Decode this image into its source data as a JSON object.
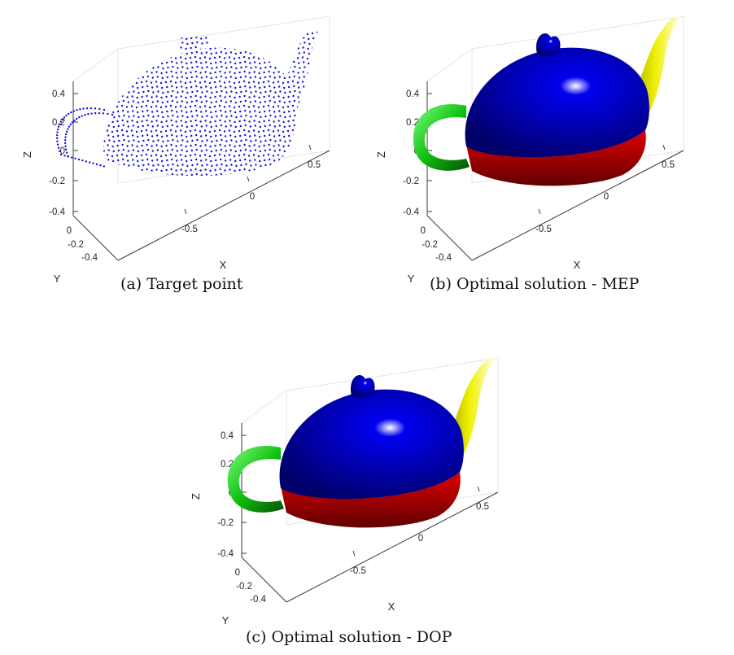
{
  "figure": {
    "panels": [
      {
        "id": "a",
        "caption": "(a) Target point",
        "render": "points",
        "point_color": "#1010e0",
        "axes": {
          "x_label": "X",
          "y_label": "Y",
          "z_label": "Z",
          "x_ticks": [
            "-0.5",
            "0",
            "0.5"
          ],
          "y_ticks": [
            "0",
            "-0.2",
            "-0.4"
          ],
          "z_ticks": [
            "0.4",
            "0.2",
            "0",
            "-0.2",
            "-0.4"
          ]
        }
      },
      {
        "id": "b",
        "caption": "(b) Optimal solution - MEP",
        "render": "surface",
        "part_colors": {
          "lid_body": "#0000ee",
          "base": "#e00000",
          "handle": "#10c010",
          "spout": "#f0f000"
        },
        "axes": {
          "x_label": "X",
          "y_label": "Y",
          "z_label": "Z",
          "x_ticks": [
            "-0.5",
            "0",
            "0.5"
          ],
          "y_ticks": [
            "0",
            "-0.2",
            "-0.4"
          ],
          "z_ticks": [
            "0.4",
            "0.2",
            "0",
            "-0.2",
            "-0.4"
          ]
        }
      },
      {
        "id": "c",
        "caption": "(c) Optimal solution - DOP",
        "render": "surface",
        "part_colors": {
          "lid_body": "#0000ee",
          "base": "#e00000",
          "handle": "#10c010",
          "spout": "#f0f000"
        },
        "axes": {
          "x_label": "X",
          "y_label": "Y",
          "z_label": "Z",
          "x_ticks": [
            "-0.5",
            "0",
            "0.5"
          ],
          "y_ticks": [
            "0",
            "-0.2",
            "-0.4"
          ],
          "z_ticks": [
            "0.4",
            "0.2",
            "0",
            "-0.2",
            "-0.4"
          ]
        }
      }
    ]
  }
}
